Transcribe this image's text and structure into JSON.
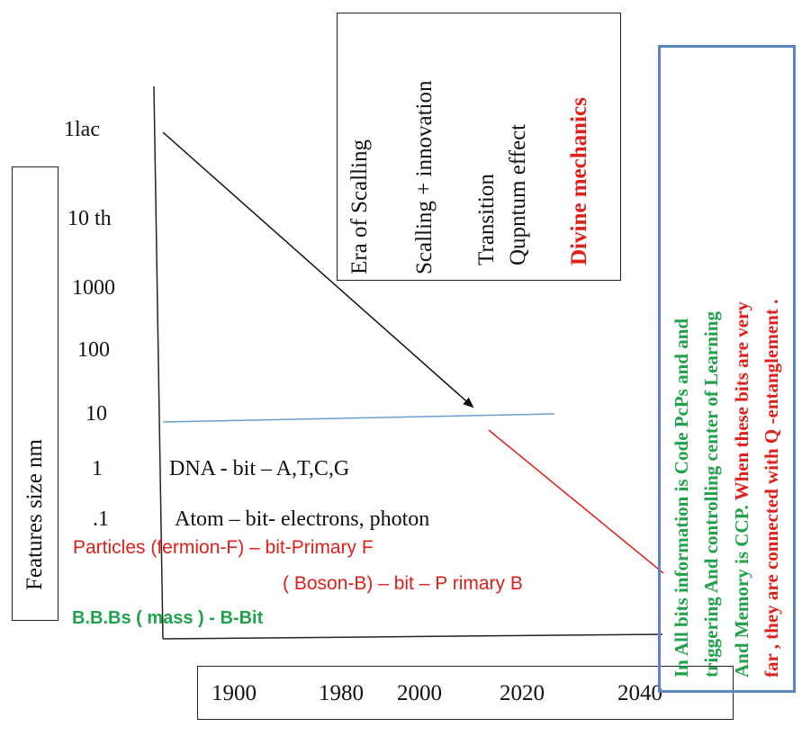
{
  "y_axis": {
    "label": "Features  size   nm",
    "ticks": [
      "1lac",
      "10 th",
      "1000",
      "100",
      "10",
      "1",
      ".1"
    ]
  },
  "x_axis": {
    "years": [
      "1900",
      "1980",
      "2000",
      "2020",
      "2040"
    ]
  },
  "eras": {
    "era_scaling": "Era of Scalling",
    "scaling_innovation": "Scalling + innovation",
    "transition": "Transition",
    "quantum_effect": "Qupntum effect",
    "divine": "Divine mechanics"
  },
  "annotations": {
    "dna": "DNA  - bit – A,T,C,G",
    "atom": "Atom – bit- electrons, photon",
    "fermion": "Particles (fermion-F) – bit-Primary F",
    "boson": "( Boson-B) – bit – P rimary B",
    "bbbs": "B.B.Bs  ( mass )  - B-Bit"
  },
  "side_note": {
    "line1": "In All bits information is Code  PcPs and and",
    "line2": "triggering And controlling center of Learning",
    "line3_green": "And Memory   is CCP.",
    "line3_red": " When these bits are very",
    "line4": "far , they are connected with Q -entanglement ."
  },
  "colors": {
    "green": "#1fa24a",
    "red": "#e0201b",
    "blue_line": "#6a9fd0",
    "side_border": "#5b84c4"
  }
}
